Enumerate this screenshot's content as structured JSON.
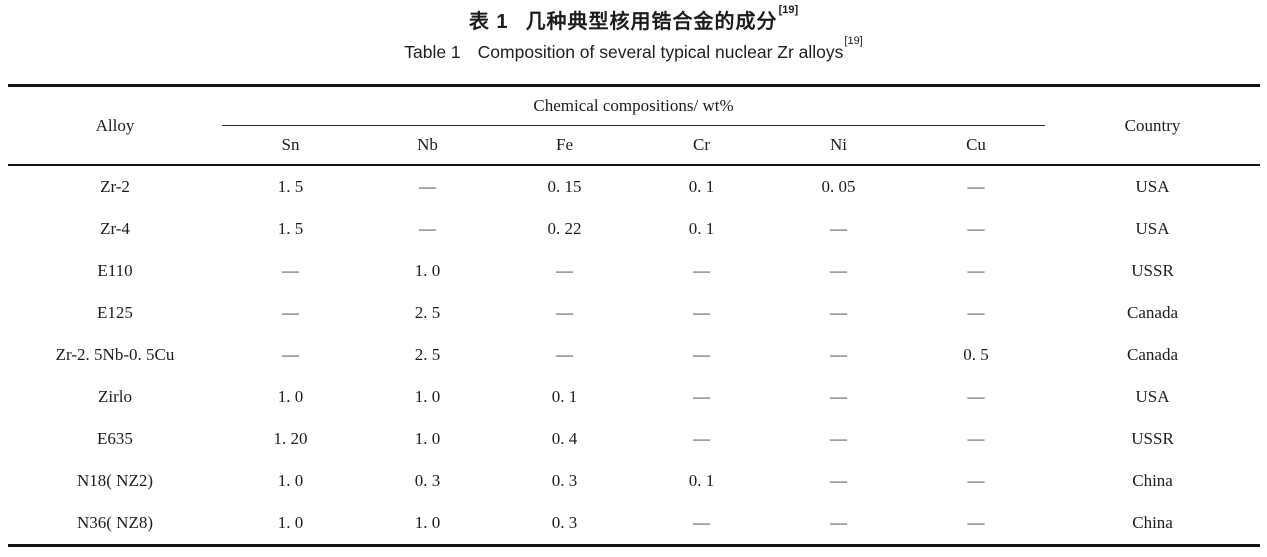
{
  "caption_cn": {
    "label": "表 1",
    "text": "几种典型核用锆合金的成分",
    "ref": "[19]"
  },
  "caption_en": {
    "label": "Table 1",
    "text": "Composition of several typical nuclear Zr alloys",
    "ref": "[19]"
  },
  "table": {
    "alloy_header": "Alloy",
    "group_header": "Chemical compositions/ wt%",
    "element_columns": [
      "Sn",
      "Nb",
      "Fe",
      "Cr",
      "Ni",
      "Cu"
    ],
    "country_header": "Country",
    "rows": [
      {
        "alloy": "Zr-2",
        "values": [
          "1. 5",
          "—",
          "0. 15",
          "0. 1",
          "0. 05",
          "—"
        ],
        "country": "USA"
      },
      {
        "alloy": "Zr-4",
        "values": [
          "1. 5",
          "—",
          "0. 22",
          "0. 1",
          "—",
          "—"
        ],
        "country": "USA"
      },
      {
        "alloy": "E110",
        "values": [
          "—",
          "1. 0",
          "—",
          "—",
          "—",
          "—"
        ],
        "country": "USSR"
      },
      {
        "alloy": "E125",
        "values": [
          "—",
          "2. 5",
          "—",
          "—",
          "—",
          "—"
        ],
        "country": "Canada"
      },
      {
        "alloy": "Zr-2. 5Nb-0. 5Cu",
        "values": [
          "—",
          "2. 5",
          "—",
          "—",
          "—",
          "0. 5"
        ],
        "country": "Canada"
      },
      {
        "alloy": "Zirlo",
        "values": [
          "1. 0",
          "1. 0",
          "0. 1",
          "—",
          "—",
          "—"
        ],
        "country": "USA"
      },
      {
        "alloy": "E635",
        "values": [
          "1. 20",
          "1. 0",
          "0. 4",
          "—",
          "—",
          "—"
        ],
        "country": "USSR"
      },
      {
        "alloy": "N18( NZ2)",
        "values": [
          "1. 0",
          "0. 3",
          "0. 3",
          "0. 1",
          "—",
          "—"
        ],
        "country": "China"
      },
      {
        "alloy": "N36( NZ8)",
        "values": [
          "1. 0",
          "1. 0",
          "0. 3",
          "—",
          "—",
          "—"
        ],
        "country": "China"
      }
    ]
  },
  "colors": {
    "text": "#1c1c1c",
    "rule": "#141414",
    "background": "#ffffff"
  }
}
